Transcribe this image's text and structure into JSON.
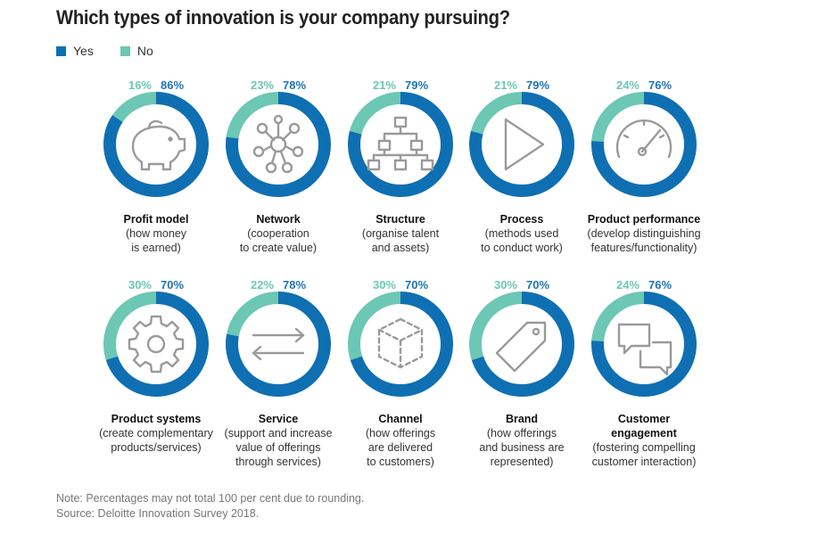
{
  "title": "Which types of innovation is your company pursuing?",
  "legend": {
    "yes": "Yes",
    "no": "No"
  },
  "colors": {
    "yes": "#0f6fb3",
    "no": "#6cc7b5",
    "icon": "#9a9a9a"
  },
  "notes": {
    "line1": "Note: Percentages may not total 100 per cent due to rounding.",
    "line2": "Source: Deloitte Innovation Survey 2018."
  },
  "chart_data": {
    "type": "pie",
    "title": "Which types of innovation is your company pursuing?",
    "series_names": [
      "Yes",
      "No"
    ],
    "items": [
      {
        "name": "Profit model",
        "description": "(how money\nis earned)",
        "yes": 86,
        "no": 16,
        "yes_label": "86%",
        "no_label": "16%",
        "icon": "piggy-bank-icon"
      },
      {
        "name": "Network",
        "description": "(cooperation\nto create value)",
        "yes": 78,
        "no": 23,
        "yes_label": "78%",
        "no_label": "23%",
        "icon": "network-icon"
      },
      {
        "name": "Structure",
        "description": "(organise talent\nand assets)",
        "yes": 79,
        "no": 21,
        "yes_label": "79%",
        "no_label": "21%",
        "icon": "org-chart-icon"
      },
      {
        "name": "Process",
        "description": "(methods used\nto conduct work)",
        "yes": 79,
        "no": 21,
        "yes_label": "79%",
        "no_label": "21%",
        "icon": "play-icon"
      },
      {
        "name": "Product performance",
        "description": "(develop distinguishing\nfeatures/functionality)",
        "yes": 76,
        "no": 24,
        "yes_label": "76%",
        "no_label": "24%",
        "icon": "gauge-icon"
      },
      {
        "name": "Product systems",
        "description": "(create complementary\nproducts/services)",
        "yes": 70,
        "no": 30,
        "yes_label": "70%",
        "no_label": "30%",
        "icon": "gear-icon"
      },
      {
        "name": "Service",
        "description": "(support and increase\nvalue of offerings\nthrough services)",
        "yes": 78,
        "no": 22,
        "yes_label": "78%",
        "no_label": "22%",
        "icon": "swap-arrows-icon"
      },
      {
        "name": "Channel",
        "description": "(how offerings\nare delivered\nto customers)",
        "yes": 70,
        "no": 30,
        "yes_label": "70%",
        "no_label": "30%",
        "icon": "cube-icon"
      },
      {
        "name": "Brand",
        "description": "(how offerings\nand business are\nrepresented)",
        "yes": 70,
        "no": 30,
        "yes_label": "70%",
        "no_label": "30%",
        "icon": "tag-icon"
      },
      {
        "name": "Customer\nengagement",
        "description": "(fostering compelling\ncustomer interaction)",
        "yes": 76,
        "no": 24,
        "yes_label": "76%",
        "no_label": "24%",
        "icon": "chat-bubbles-icon"
      }
    ]
  }
}
